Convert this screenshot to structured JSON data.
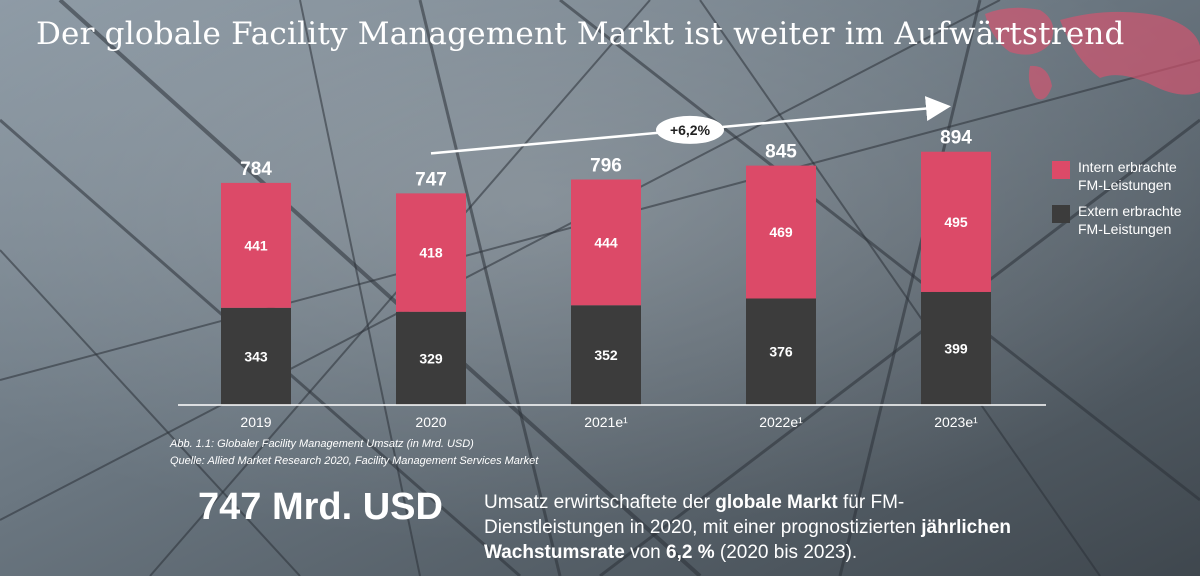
{
  "title": "Der globale Facility Management Markt ist weiter im Aufwärtstrend",
  "chart_data": {
    "type": "bar",
    "stacked": true,
    "categories": [
      "2019",
      "2020",
      "2021e¹",
      "2022e¹",
      "2023e¹"
    ],
    "series": [
      {
        "name": "Extern erbrachte FM-Leistungen",
        "color": "#3c3c3c",
        "values": [
          343,
          329,
          352,
          376,
          399
        ]
      },
      {
        "name": "Intern erbrachte FM-Leistungen",
        "color": "#dc4a68",
        "values": [
          441,
          418,
          444,
          469,
          495
        ]
      }
    ],
    "totals": [
      784,
      747,
      796,
      845,
      894
    ],
    "ylim": [
      0,
      1000
    ],
    "grid": false,
    "legend": "right",
    "annotation": {
      "label": "+6,2%",
      "from": "2020",
      "to": "2023e¹"
    }
  },
  "legend": {
    "intern_line1": "Intern erbrachte",
    "intern_line2": "FM-Leistungen",
    "extern_line1": "Extern erbrachte",
    "extern_line2": "FM-Leistungen"
  },
  "caption": {
    "figure": "Abb. 1.1: Globaler Facility Management Umsatz (in Mrd. USD)",
    "source": "Quelle: Allied Market Research 2020, Facility Management Services Market"
  },
  "highlight": {
    "value": "747 Mrd. USD",
    "text1": "Umsatz erwirtschaftete der ",
    "bold1": "globale Markt",
    "text2": " für FM-Dienstleistungen in 2020, mit einer prognostizierten ",
    "bold2": "jährlichen Wachstumsrate",
    "text3": " von ",
    "bold3": "6,2 %",
    "text4": " (2020 bis 2023)."
  },
  "colors": {
    "intern": "#dc4a68",
    "extern": "#3c3c3c",
    "text": "#ffffff",
    "background": "#5f6a73"
  }
}
